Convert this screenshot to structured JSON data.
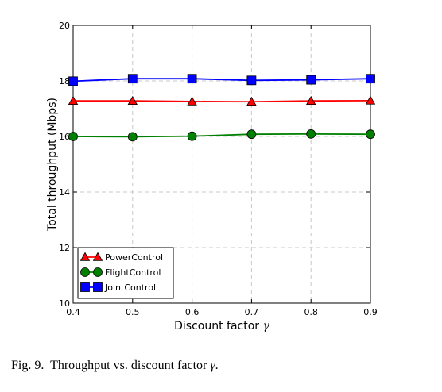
{
  "chart_data": {
    "type": "line",
    "x": [
      0.4,
      0.5,
      0.6,
      0.7,
      0.8,
      0.9
    ],
    "series": [
      {
        "name": "PowerControl",
        "values": [
          17.28,
          17.28,
          17.26,
          17.25,
          17.28,
          17.29
        ],
        "color": "#ff0000",
        "marker": "triangle"
      },
      {
        "name": "FlightControl",
        "values": [
          16.0,
          15.99,
          16.01,
          16.08,
          16.09,
          16.08
        ],
        "color": "#008000",
        "marker": "circle"
      },
      {
        "name": "JointControl",
        "values": [
          17.99,
          18.08,
          18.08,
          18.02,
          18.04,
          18.08
        ],
        "color": "#0000ff",
        "marker": "square"
      }
    ],
    "xlabel_text": "Discount factor",
    "xlabel_symbol": "γ",
    "ylabel": "Total throughput (Mbps)",
    "xlim": [
      0.4,
      0.9
    ],
    "ylim": [
      10,
      20
    ],
    "xticks": [
      "0.4",
      "0.5",
      "0.6",
      "0.7",
      "0.8",
      "0.9"
    ],
    "yticks": [
      "10",
      "12",
      "14",
      "16",
      "18",
      "20"
    ],
    "grid": true,
    "legend_position": "lower-left"
  },
  "caption": {
    "label": "Fig. 9.",
    "text": "Throughput vs. discount factor",
    "symbol": "γ",
    "suffix": "."
  }
}
